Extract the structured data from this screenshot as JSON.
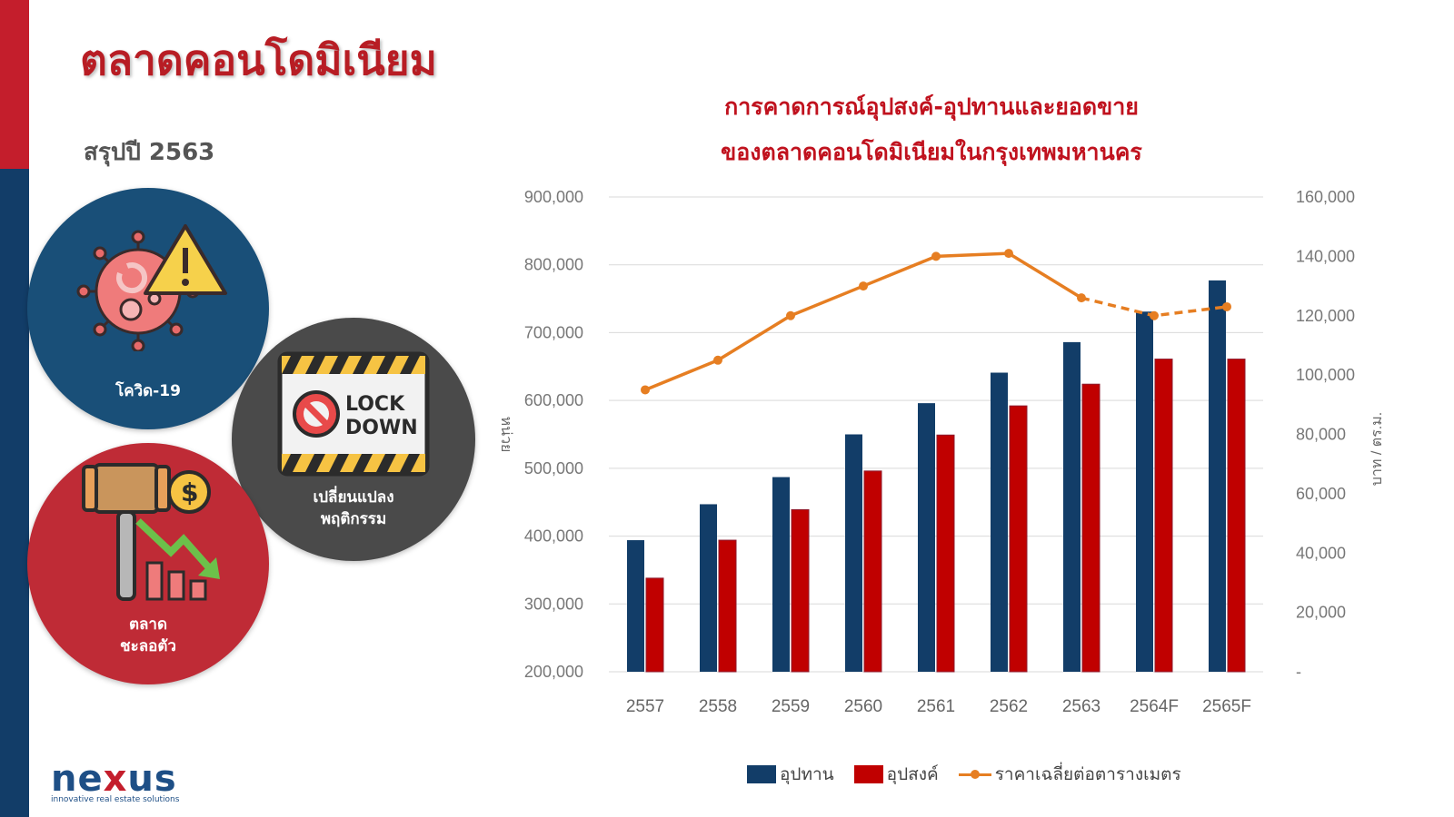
{
  "page": {
    "title": "ตลาดคอนโดมิเนียม",
    "subtitle": "สรุปปี 2563"
  },
  "factors": [
    {
      "label": "โควิด-19",
      "icon": "virus-warning-icon",
      "color": "#194f78"
    },
    {
      "label_line1": "เปลี่ยนแปลง",
      "label_line2": "พฤติกรรม",
      "icon": "lockdown-sign-icon",
      "color": "#4a4a4a"
    },
    {
      "label_line1": "ตลาด",
      "label_line2": "ชะลอตัว",
      "icon": "gavel-decline-icon",
      "color": "#bf2b36"
    }
  ],
  "logo": {
    "word": "nexus",
    "tagline": "innovative real estate solutions"
  },
  "chart": {
    "title_line1": "การคาดการณ์อุปสงค์-อุปทานและยอดขาย",
    "title_line2": "ของตลาดคอนโดมิเนียมในกรุงเทพมหานคร"
  },
  "chart_data": {
    "type": "bar",
    "categories": [
      "2557",
      "2558",
      "2559",
      "2560",
      "2561",
      "2562",
      "2563",
      "2564F",
      "2565F"
    ],
    "series": [
      {
        "name": "อุปทาน",
        "type": "bar",
        "axis": "left",
        "color": "#123d68",
        "values": [
          394000,
          447000,
          487000,
          550000,
          596000,
          641000,
          686000,
          731000,
          777000
        ]
      },
      {
        "name": "อุปสงค์",
        "type": "bar",
        "axis": "left",
        "color": "#c00000",
        "values": [
          338000,
          394000,
          439000,
          496000,
          549000,
          592000,
          624000,
          661000,
          661000
        ]
      },
      {
        "name": "ราคาเฉลี่ยต่อตารางเมตร",
        "type": "line",
        "axis": "right",
        "color": "#e67e22",
        "values": [
          95000,
          105000,
          120000,
          130000,
          140000,
          141000,
          126000,
          120000,
          123000
        ],
        "dashed_from_index": 6
      }
    ],
    "ylabel": "หน่วย",
    "y2label": "บาท / ตร.ม.",
    "ylim": [
      200000,
      900000
    ],
    "y2lim": [
      0,
      160000
    ],
    "yticks": [
      "200,000",
      "300,000",
      "400,000",
      "500,000",
      "600,000",
      "700,000",
      "800,000",
      "900,000"
    ],
    "y2ticks": [
      "-",
      "20,000",
      "40,000",
      "60,000",
      "80,000",
      "100,000",
      "120,000",
      "140,000",
      "160,000"
    ],
    "grid": true,
    "legend_position": "bottom"
  }
}
